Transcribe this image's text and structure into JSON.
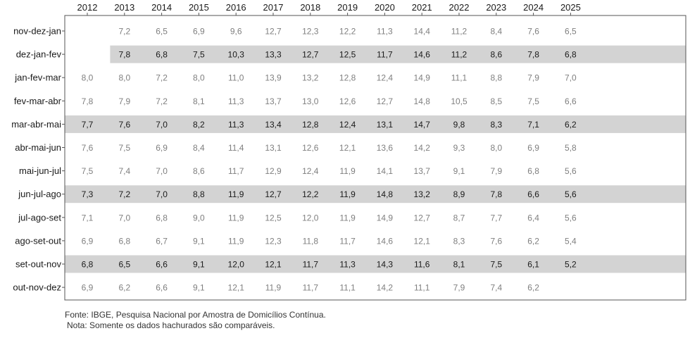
{
  "chart_data": {
    "type": "table",
    "years": [
      "2012",
      "2013",
      "2014",
      "2015",
      "2016",
      "2017",
      "2018",
      "2019",
      "2020",
      "2021",
      "2022",
      "2023",
      "2024",
      "2025"
    ],
    "rows": [
      {
        "label": "nov-dez-jan",
        "shaded": false,
        "values": [
          null,
          "7,2",
          "6,5",
          "6,9",
          "9,6",
          "12,7",
          "12,3",
          "12,2",
          "11,3",
          "14,4",
          "11,2",
          "8,4",
          "7,6",
          "6,5"
        ]
      },
      {
        "label": "dez-jan-fev",
        "shaded": true,
        "values": [
          null,
          "7,8",
          "6,8",
          "7,5",
          "10,3",
          "13,3",
          "12,7",
          "12,5",
          "11,7",
          "14,6",
          "11,2",
          "8,6",
          "7,8",
          "6,8"
        ]
      },
      {
        "label": "jan-fev-mar",
        "shaded": false,
        "values": [
          "8,0",
          "8,0",
          "7,2",
          "8,0",
          "11,0",
          "13,9",
          "13,2",
          "12,8",
          "12,4",
          "14,9",
          "11,1",
          "8,8",
          "7,9",
          "7,0"
        ]
      },
      {
        "label": "fev-mar-abr",
        "shaded": false,
        "values": [
          "7,8",
          "7,9",
          "7,2",
          "8,1",
          "11,3",
          "13,7",
          "13,0",
          "12,6",
          "12,7",
          "14,8",
          "10,5",
          "8,5",
          "7,5",
          "6,6"
        ]
      },
      {
        "label": "mar-abr-mai",
        "shaded": true,
        "values": [
          "7,7",
          "7,6",
          "7,0",
          "8,2",
          "11,3",
          "13,4",
          "12,8",
          "12,4",
          "13,1",
          "14,7",
          "9,8",
          "8,3",
          "7,1",
          "6,2"
        ]
      },
      {
        "label": "abr-mai-jun",
        "shaded": false,
        "values": [
          "7,6",
          "7,5",
          "6,9",
          "8,4",
          "11,4",
          "13,1",
          "12,6",
          "12,1",
          "13,6",
          "14,2",
          "9,3",
          "8,0",
          "6,9",
          "5,8"
        ]
      },
      {
        "label": "mai-jun-jul",
        "shaded": false,
        "values": [
          "7,5",
          "7,4",
          "7,0",
          "8,6",
          "11,7",
          "12,9",
          "12,4",
          "11,9",
          "14,1",
          "13,7",
          "9,1",
          "7,9",
          "6,8",
          "5,6"
        ]
      },
      {
        "label": "jun-jul-ago",
        "shaded": true,
        "values": [
          "7,3",
          "7,2",
          "7,0",
          "8,8",
          "11,9",
          "12,7",
          "12,2",
          "11,9",
          "14,8",
          "13,2",
          "8,9",
          "7,8",
          "6,6",
          "5,6"
        ]
      },
      {
        "label": "jul-ago-set",
        "shaded": false,
        "values": [
          "7,1",
          "7,0",
          "6,8",
          "9,0",
          "11,9",
          "12,5",
          "12,0",
          "11,9",
          "14,9",
          "12,7",
          "8,7",
          "7,7",
          "6,4",
          "5,6"
        ]
      },
      {
        "label": "ago-set-out",
        "shaded": false,
        "values": [
          "6,9",
          "6,8",
          "6,7",
          "9,1",
          "11,9",
          "12,3",
          "11,8",
          "11,7",
          "14,6",
          "12,1",
          "8,3",
          "7,6",
          "6,2",
          "5,4"
        ]
      },
      {
        "label": "set-out-nov",
        "shaded": true,
        "values": [
          "6,8",
          "6,5",
          "6,6",
          "9,1",
          "12,0",
          "12,1",
          "11,7",
          "11,3",
          "14,3",
          "11,6",
          "8,1",
          "7,5",
          "6,1",
          "5,2"
        ]
      },
      {
        "label": "out-nov-dez",
        "shaded": false,
        "values": [
          "6,9",
          "6,2",
          "6,6",
          "9,1",
          "12,1",
          "11,9",
          "11,7",
          "11,1",
          "14,2",
          "11,1",
          "7,9",
          "7,4",
          "6,2",
          null
        ]
      }
    ],
    "shade_color": "#d3d3d3",
    "text_color_shaded": "#1a1a1a",
    "text_color_normal": "#7f7f7f",
    "label_color": "#1a1a1a",
    "border_color": "#555555"
  },
  "footer": {
    "source": "Fonte: IBGE, Pesquisa Nacional por Amostra de Domicílios Contínua.",
    "note": "Nota: Somente os dados hachurados são comparáveis."
  }
}
